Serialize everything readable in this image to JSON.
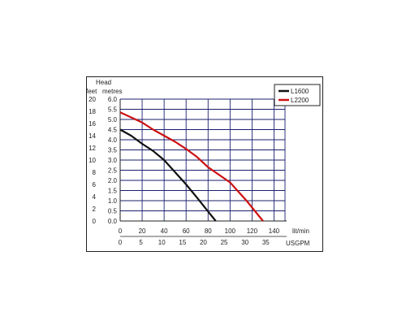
{
  "chart_data": {
    "type": "line",
    "axis_titles": {
      "head": "Head",
      "feet": "feet",
      "metres": "metres",
      "litmin": "lit/min",
      "usgpm": "USGPM"
    },
    "feet_ticks": [
      "20",
      "18",
      "16",
      "14",
      "12",
      "10",
      "8",
      "6",
      "4",
      "2",
      "0"
    ],
    "metres_ticks": [
      "6.0",
      "5.5",
      "5.0",
      "4.5",
      "4.0",
      "3.5",
      "3.0",
      "2.5",
      "2.0",
      "1.5",
      "1.0",
      "0.5",
      "0.0"
    ],
    "litmin_ticks": [
      "0",
      "20",
      "40",
      "60",
      "80",
      "100",
      "120",
      "140"
    ],
    "usgpm_ticks": [
      "0",
      "5",
      "10",
      "15",
      "20",
      "25",
      "30",
      "35"
    ],
    "xlim_litmin": [
      0,
      150
    ],
    "ylim_metres": [
      0,
      6.0
    ],
    "grid": true,
    "legend_placement": "top-right",
    "series": [
      {
        "name": "L1600",
        "color": "#111111",
        "points": [
          [
            0,
            4.5
          ],
          [
            10,
            4.2
          ],
          [
            20,
            3.8
          ],
          [
            30,
            3.45
          ],
          [
            40,
            3.0
          ],
          [
            50,
            2.4
          ],
          [
            60,
            1.8
          ],
          [
            70,
            1.15
          ],
          [
            78,
            0.6
          ],
          [
            87,
            0.0
          ]
        ]
      },
      {
        "name": "L2200",
        "color": "#cc1111",
        "points": [
          [
            0,
            5.35
          ],
          [
            10,
            5.1
          ],
          [
            20,
            4.85
          ],
          [
            30,
            4.5
          ],
          [
            40,
            4.2
          ],
          [
            50,
            3.9
          ],
          [
            60,
            3.55
          ],
          [
            70,
            3.15
          ],
          [
            80,
            2.65
          ],
          [
            100,
            1.9
          ],
          [
            115,
            1.0
          ],
          [
            130,
            0.0
          ]
        ]
      }
    ]
  }
}
